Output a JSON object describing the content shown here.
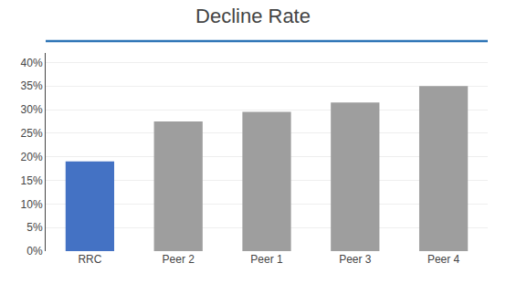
{
  "chart_data": {
    "type": "bar",
    "title": "Decline Rate",
    "categories": [
      "RRC",
      "Peer 2",
      "Peer 1",
      "Peer 3",
      "Peer 4"
    ],
    "values": [
      0.19,
      0.275,
      0.295,
      0.315,
      0.35
    ],
    "colors": [
      "#4472C4",
      "#9E9E9E",
      "#9E9E9E",
      "#9E9E9E",
      "#9E9E9E"
    ],
    "ylim": [
      0,
      0.42
    ],
    "yticks": [
      {
        "value": 0.0,
        "label": "0%"
      },
      {
        "value": 0.05,
        "label": "5%"
      },
      {
        "value": 0.1,
        "label": "10%"
      },
      {
        "value": 0.15,
        "label": "15%"
      },
      {
        "value": 0.2,
        "label": "20%"
      },
      {
        "value": 0.25,
        "label": "25%"
      },
      {
        "value": 0.3,
        "label": "30%"
      },
      {
        "value": 0.35,
        "label": "35%"
      },
      {
        "value": 0.4,
        "label": "40%"
      }
    ],
    "grid": true
  }
}
